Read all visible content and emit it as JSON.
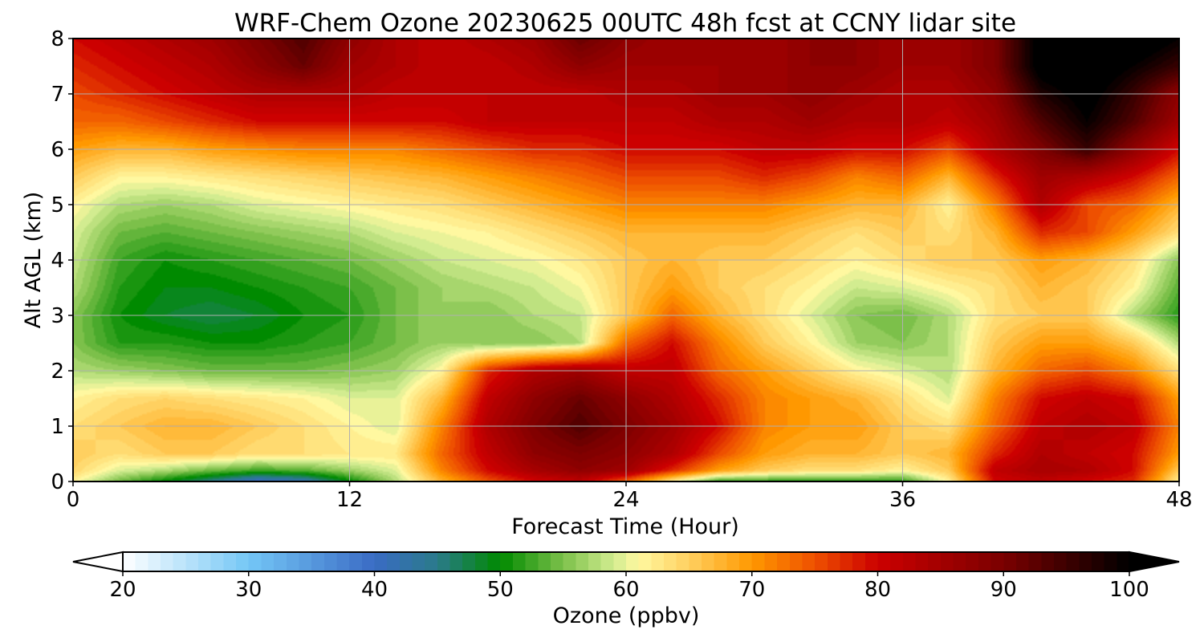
{
  "chart_data": {
    "type": "heatmap",
    "title": "WRF-Chem Ozone  20230625 00UTC 48h fcst at CCNY lidar site",
    "xlabel": "Forecast Time (Hour)",
    "ylabel": "Alt AGL (km)",
    "xlim": [
      0,
      48
    ],
    "ylim": [
      0,
      8
    ],
    "xticks": [
      0,
      12,
      24,
      36,
      48
    ],
    "yticks": [
      0,
      1,
      2,
      3,
      4,
      5,
      6,
      7,
      8
    ],
    "xtick_labels": [
      "0",
      "12",
      "24",
      "36",
      "48"
    ],
    "ytick_labels": [
      "0",
      "1",
      "2",
      "3",
      "4",
      "5",
      "6",
      "7",
      "8"
    ],
    "grid": true,
    "x": [
      0,
      2,
      4,
      6,
      8,
      10,
      12,
      14,
      16,
      18,
      20,
      22,
      24,
      26,
      28,
      30,
      32,
      34,
      36,
      38,
      40,
      42,
      44,
      46,
      48
    ],
    "y": [
      0,
      0.2,
      0.5,
      1,
      1.5,
      2,
      2.5,
      3,
      3.5,
      4,
      4.5,
      5,
      5.5,
      6,
      6.5,
      7,
      7.5,
      8
    ],
    "z": [
      [
        62,
        55,
        50,
        45,
        40,
        42,
        50,
        58,
        68,
        75,
        80,
        82,
        74,
        62,
        52,
        52,
        52,
        52,
        52,
        62,
        80,
        82,
        80,
        78,
        62
      ],
      [
        65,
        60,
        58,
        55,
        53,
        54,
        57,
        60,
        72,
        80,
        85,
        88,
        86,
        78,
        70,
        66,
        64,
        64,
        62,
        66,
        82,
        85,
        84,
        80,
        66
      ],
      [
        66,
        64,
        66,
        66,
        64,
        64,
        63,
        63,
        74,
        82,
        88,
        90,
        88,
        84,
        76,
        70,
        68,
        68,
        66,
        68,
        78,
        84,
        82,
        80,
        70
      ],
      [
        64,
        66,
        68,
        68,
        66,
        64,
        62,
        60,
        72,
        84,
        90,
        94,
        90,
        86,
        80,
        72,
        70,
        70,
        66,
        64,
        74,
        82,
        84,
        82,
        72
      ],
      [
        62,
        64,
        65,
        64,
        63,
        62,
        60,
        60,
        68,
        82,
        88,
        92,
        88,
        84,
        78,
        72,
        70,
        68,
        64,
        60,
        72,
        80,
        82,
        80,
        70
      ],
      [
        58,
        57,
        56,
        55,
        55,
        55,
        56,
        57,
        62,
        78,
        84,
        86,
        82,
        82,
        74,
        70,
        66,
        62,
        60,
        58,
        68,
        74,
        76,
        72,
        64
      ],
      [
        56,
        52,
        52,
        51,
        51,
        52,
        53,
        55,
        57,
        56,
        56,
        58,
        74,
        80,
        72,
        66,
        62,
        57,
        56,
        58,
        66,
        70,
        70,
        66,
        58
      ],
      [
        56,
        51,
        49,
        48,
        49,
        51,
        52,
        55,
        57,
        56,
        58,
        59,
        66,
        74,
        68,
        64,
        60,
        56,
        55,
        58,
        64,
        66,
        66,
        58,
        52
      ],
      [
        58,
        52,
        50,
        50,
        51,
        52,
        53,
        55,
        57,
        58,
        59,
        61,
        66,
        70,
        66,
        64,
        62,
        59,
        60,
        62,
        64,
        68,
        66,
        62,
        54
      ],
      [
        59,
        53,
        51,
        52,
        53,
        54,
        55,
        57,
        59,
        60,
        61,
        63,
        66,
        68,
        66,
        66,
        64,
        62,
        64,
        66,
        66,
        70,
        68,
        64,
        56
      ],
      [
        60,
        55,
        54,
        55,
        56,
        57,
        58,
        60,
        61,
        62,
        64,
        66,
        68,
        68,
        68,
        68,
        66,
        64,
        66,
        64,
        68,
        78,
        76,
        70,
        64
      ],
      [
        62,
        58,
        57,
        58,
        60,
        61,
        62,
        63,
        64,
        66,
        68,
        70,
        72,
        72,
        72,
        72,
        70,
        68,
        68,
        62,
        72,
        84,
        76,
        74,
        68
      ],
      [
        66,
        62,
        62,
        63,
        64,
        65,
        66,
        67,
        68,
        70,
        72,
        74,
        76,
        76,
        76,
        78,
        76,
        72,
        74,
        68,
        78,
        86,
        84,
        80,
        74
      ],
      [
        70,
        68,
        68,
        70,
        71,
        72,
        72,
        72,
        74,
        76,
        78,
        78,
        80,
        80,
        80,
        82,
        82,
        80,
        80,
        76,
        84,
        90,
        96,
        88,
        80
      ],
      [
        74,
        74,
        76,
        78,
        80,
        80,
        80,
        80,
        80,
        82,
        82,
        82,
        82,
        82,
        84,
        84,
        86,
        84,
        84,
        82,
        86,
        94,
        100,
        94,
        86
      ],
      [
        76,
        78,
        80,
        82,
        84,
        84,
        84,
        82,
        82,
        82,
        82,
        82,
        84,
        84,
        86,
        86,
        88,
        86,
        84,
        84,
        88,
        98,
        102,
        96,
        88
      ],
      [
        78,
        80,
        82,
        84,
        88,
        92,
        86,
        84,
        82,
        82,
        84,
        88,
        86,
        86,
        86,
        86,
        88,
        88,
        86,
        86,
        90,
        102,
        104,
        100,
        96
      ],
      [
        80,
        82,
        84,
        86,
        90,
        94,
        88,
        84,
        82,
        84,
        86,
        92,
        88,
        86,
        86,
        86,
        88,
        88,
        86,
        86,
        90,
        102,
        104,
        104,
        100
      ]
    ],
    "colorbar": {
      "label": "Ozone  (ppbv)",
      "min": 20,
      "max": 100,
      "ticks": [
        20,
        30,
        40,
        50,
        60,
        70,
        80,
        90,
        100
      ],
      "tick_labels": [
        "20",
        "30",
        "40",
        "50",
        "60",
        "70",
        "80",
        "90",
        "100"
      ],
      "extend": "both",
      "under_color": "#ffffff",
      "over_color": "#000000",
      "color_stops": [
        {
          "value": 20,
          "color": "#ffffff"
        },
        {
          "value": 30,
          "color": "#74c7f6"
        },
        {
          "value": 40,
          "color": "#3a6bc4"
        },
        {
          "value": 45,
          "color": "#2a7a8a"
        },
        {
          "value": 50,
          "color": "#008a00"
        },
        {
          "value": 55,
          "color": "#7cc04a"
        },
        {
          "value": 59,
          "color": "#d2ec90"
        },
        {
          "value": 61,
          "color": "#fff8a0"
        },
        {
          "value": 65,
          "color": "#ffd060"
        },
        {
          "value": 70,
          "color": "#ff9800"
        },
        {
          "value": 75,
          "color": "#ee5000"
        },
        {
          "value": 80,
          "color": "#cc0000"
        },
        {
          "value": 90,
          "color": "#7a0000"
        },
        {
          "value": 100,
          "color": "#000000"
        }
      ]
    }
  }
}
